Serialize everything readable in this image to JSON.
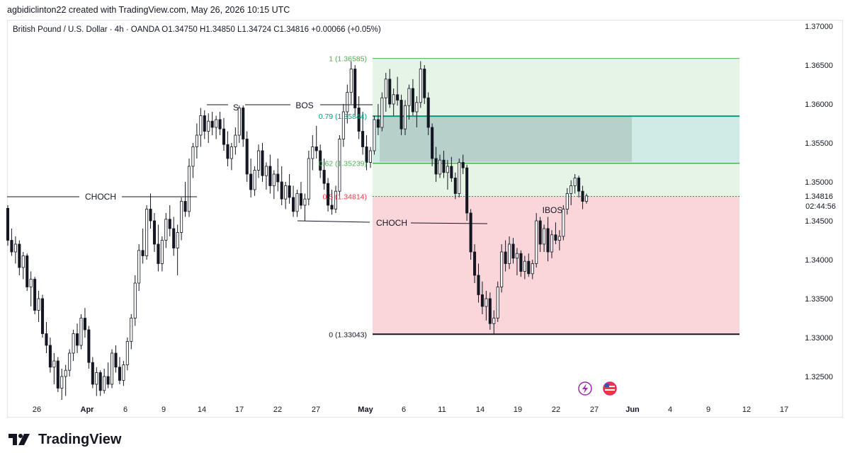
{
  "header": {
    "credit": "agbidiclinton22 created with TradingView.com, May 26, 2026 10:15 UTC"
  },
  "symbol_info": "British Pound / U.S. Dollar · 4h · OANDA  O1.34750  H1.34850  L1.34724  C1.34816  +0.00066 (+0.05%)",
  "brand": {
    "name": "TradingView"
  },
  "colors": {
    "up": "#131722",
    "down": "#131722",
    "fib_green": "#4caf50",
    "fib_teal": "#089981",
    "fib_red": "#f23645",
    "zone_green": "#e6f4e5",
    "zone_teal": "#cfebe6",
    "zone_red": "#fad6da",
    "ob_box": "#9ab0a8"
  },
  "chart_data": {
    "type": "candlestick",
    "ylim": [
      1.3215,
      1.371
    ],
    "y_ticks": [
      "1.37000",
      "1.36500",
      "1.36000",
      "1.35500",
      "1.35000",
      "1.34500",
      "1.34000",
      "1.33500",
      "1.33000",
      "1.32500"
    ],
    "current_price": "1.34816",
    "countdown": "02:44:56",
    "x_ticks": [
      "26",
      "Apr",
      "6",
      "9",
      "14",
      "17",
      "22",
      "27",
      "May",
      "6",
      "11",
      "14",
      "19",
      "22",
      "27",
      "Jun",
      "4",
      "9",
      "12",
      "17"
    ],
    "fib_levels": [
      {
        "label": "1 (1.36585)",
        "value": 1.36585
      },
      {
        "label": "0.79 (1.35844)",
        "value": 1.35844
      },
      {
        "label": "0.62 (1.35239)",
        "value": 1.35239
      },
      {
        "label": "0.5 (1.34814)",
        "value": 1.34814
      },
      {
        "label": "0 (1.33043)",
        "value": 1.33043
      }
    ],
    "annotations": [
      {
        "text": "CHOCH",
        "price": 1.34814
      },
      {
        "text": "S",
        "price": 1.36
      },
      {
        "text": "BOS",
        "price": 1.36
      },
      {
        "text": "CHOCH",
        "price": 1.345
      },
      {
        "text": "IBOS",
        "price": 1.346
      }
    ],
    "candles": [
      [
        1.3466,
        1.347,
        1.3418,
        1.3425
      ],
      [
        1.3425,
        1.344,
        1.3405,
        1.341
      ],
      [
        1.341,
        1.343,
        1.3395,
        1.342
      ],
      [
        1.342,
        1.3425,
        1.338,
        1.339
      ],
      [
        1.339,
        1.341,
        1.3375,
        1.3405
      ],
      [
        1.3405,
        1.3408,
        1.336,
        1.3365
      ],
      [
        1.3365,
        1.3385,
        1.334,
        1.3375
      ],
      [
        1.3375,
        1.3378,
        1.333,
        1.3335
      ],
      [
        1.3335,
        1.336,
        1.332,
        1.335
      ],
      [
        1.335,
        1.3355,
        1.33,
        1.3305
      ],
      [
        1.3305,
        1.332,
        1.328,
        1.329
      ],
      [
        1.329,
        1.33,
        1.3255,
        1.3262
      ],
      [
        1.3262,
        1.328,
        1.324,
        1.327
      ],
      [
        1.327,
        1.3275,
        1.323,
        1.3235
      ],
      [
        1.3235,
        1.326,
        1.322,
        1.325
      ],
      [
        1.325,
        1.3265,
        1.3225,
        1.3258
      ],
      [
        1.3258,
        1.3285,
        1.325,
        1.328
      ],
      [
        1.328,
        1.331,
        1.327,
        1.3305
      ],
      [
        1.3305,
        1.3318,
        1.328,
        1.329
      ],
      [
        1.329,
        1.333,
        1.3285,
        1.3325
      ],
      [
        1.3325,
        1.3338,
        1.33,
        1.331
      ],
      [
        1.331,
        1.3315,
        1.326,
        1.3268
      ],
      [
        1.3268,
        1.3275,
        1.3235,
        1.324
      ],
      [
        1.324,
        1.3262,
        1.3225,
        1.3255
      ],
      [
        1.3255,
        1.3258,
        1.3225,
        1.3232
      ],
      [
        1.3232,
        1.326,
        1.3228,
        1.325
      ],
      [
        1.325,
        1.3268,
        1.3235,
        1.324
      ],
      [
        1.324,
        1.3285,
        1.3235,
        1.328
      ],
      [
        1.328,
        1.329,
        1.3255,
        1.3262
      ],
      [
        1.3262,
        1.3275,
        1.324,
        1.3245
      ],
      [
        1.3245,
        1.327,
        1.3238,
        1.3265
      ],
      [
        1.3265,
        1.33,
        1.3258,
        1.3295
      ],
      [
        1.3295,
        1.333,
        1.3285,
        1.3325
      ],
      [
        1.3325,
        1.338,
        1.3315,
        1.337
      ],
      [
        1.337,
        1.342,
        1.336,
        1.3412
      ],
      [
        1.3412,
        1.344,
        1.3395,
        1.3405
      ],
      [
        1.3405,
        1.347,
        1.34,
        1.3465
      ],
      [
        1.3465,
        1.3485,
        1.344,
        1.345
      ],
      [
        1.345,
        1.346,
        1.341,
        1.342
      ],
      [
        1.342,
        1.3445,
        1.3385,
        1.3395
      ],
      [
        1.3395,
        1.343,
        1.3385,
        1.3425
      ],
      [
        1.3425,
        1.346,
        1.3415,
        1.3452
      ],
      [
        1.3452,
        1.347,
        1.343,
        1.344
      ],
      [
        1.344,
        1.3455,
        1.3405,
        1.3415
      ],
      [
        1.3415,
        1.3445,
        1.338,
        1.3435
      ],
      [
        1.3435,
        1.348,
        1.3425,
        1.3475
      ],
      [
        1.3475,
        1.35,
        1.3455,
        1.3462
      ],
      [
        1.3462,
        1.353,
        1.3455,
        1.352
      ],
      [
        1.352,
        1.355,
        1.3505,
        1.3545
      ],
      [
        1.3545,
        1.3575,
        1.353,
        1.356
      ],
      [
        1.356,
        1.3595,
        1.3545,
        1.3585
      ],
      [
        1.3585,
        1.3592,
        1.3555,
        1.3565
      ],
      [
        1.3565,
        1.3588,
        1.355,
        1.3578
      ],
      [
        1.3578,
        1.359,
        1.356,
        1.357
      ],
      [
        1.357,
        1.3585,
        1.3555,
        1.358
      ],
      [
        1.358,
        1.359,
        1.356,
        1.3568
      ],
      [
        1.3568,
        1.3582,
        1.354,
        1.3548
      ],
      [
        1.3548,
        1.3565,
        1.352,
        1.353
      ],
      [
        1.353,
        1.355,
        1.3515,
        1.3545
      ],
      [
        1.3545,
        1.357,
        1.3535,
        1.356
      ],
      [
        1.356,
        1.3598,
        1.355,
        1.3595
      ],
      [
        1.3595,
        1.3598,
        1.3545,
        1.3555
      ],
      [
        1.3555,
        1.3565,
        1.35,
        1.351
      ],
      [
        1.351,
        1.353,
        1.348,
        1.349
      ],
      [
        1.349,
        1.352,
        1.3482,
        1.3515
      ],
      [
        1.3515,
        1.3548,
        1.3505,
        1.354
      ],
      [
        1.354,
        1.355,
        1.35,
        1.3508
      ],
      [
        1.3508,
        1.3525,
        1.349,
        1.352
      ],
      [
        1.352,
        1.3535,
        1.3485,
        1.3495
      ],
      [
        1.3495,
        1.3515,
        1.3478,
        1.351
      ],
      [
        1.351,
        1.353,
        1.3488,
        1.35
      ],
      [
        1.35,
        1.352,
        1.347,
        1.3478
      ],
      [
        1.3478,
        1.35,
        1.3465,
        1.3495
      ],
      [
        1.3495,
        1.351,
        1.3472,
        1.348
      ],
      [
        1.348,
        1.3495,
        1.3455,
        1.3462
      ],
      [
        1.3462,
        1.349,
        1.3455,
        1.3485
      ],
      [
        1.3485,
        1.35,
        1.3465,
        1.347
      ],
      [
        1.347,
        1.3485,
        1.345,
        1.3478
      ],
      [
        1.3478,
        1.354,
        1.347,
        1.353
      ],
      [
        1.353,
        1.356,
        1.3515,
        1.3545
      ],
      [
        1.3545,
        1.3572,
        1.353,
        1.354
      ],
      [
        1.354,
        1.3548,
        1.3505,
        1.3515
      ],
      [
        1.3515,
        1.353,
        1.349,
        1.3498
      ],
      [
        1.3498,
        1.3505,
        1.3462,
        1.347
      ],
      [
        1.347,
        1.349,
        1.3458,
        1.3465
      ],
      [
        1.3465,
        1.3495,
        1.346,
        1.3488
      ],
      [
        1.3488,
        1.356,
        1.348,
        1.3555
      ],
      [
        1.3555,
        1.36,
        1.3545,
        1.359
      ],
      [
        1.359,
        1.3625,
        1.3575,
        1.3615
      ],
      [
        1.3615,
        1.3655,
        1.36,
        1.3645
      ],
      [
        1.3645,
        1.365,
        1.3585,
        1.3595
      ],
      [
        1.3595,
        1.361,
        1.3555,
        1.3565
      ],
      [
        1.3565,
        1.359,
        1.3535,
        1.3545
      ],
      [
        1.3545,
        1.356,
        1.3515,
        1.3525
      ],
      [
        1.3525,
        1.3545,
        1.3518,
        1.354
      ],
      [
        1.354,
        1.3585,
        1.3535,
        1.358
      ],
      [
        1.358,
        1.36,
        1.356,
        1.357
      ],
      [
        1.357,
        1.3615,
        1.3565,
        1.3608
      ],
      [
        1.3608,
        1.364,
        1.359,
        1.3632
      ],
      [
        1.3632,
        1.3645,
        1.3595,
        1.36
      ],
      [
        1.36,
        1.362,
        1.3585,
        1.3612
      ],
      [
        1.3612,
        1.3635,
        1.3598,
        1.3605
      ],
      [
        1.3605,
        1.3612,
        1.356,
        1.3568
      ],
      [
        1.3568,
        1.3605,
        1.356,
        1.3598
      ],
      [
        1.3598,
        1.3625,
        1.358,
        1.362
      ],
      [
        1.362,
        1.3632,
        1.3585,
        1.359
      ],
      [
        1.359,
        1.361,
        1.357,
        1.3602
      ],
      [
        1.3602,
        1.3655,
        1.3595,
        1.3645
      ],
      [
        1.3645,
        1.365,
        1.36,
        1.3608
      ],
      [
        1.3608,
        1.3615,
        1.356,
        1.357
      ],
      [
        1.357,
        1.3575,
        1.352,
        1.353
      ],
      [
        1.353,
        1.3545,
        1.35,
        1.351
      ],
      [
        1.351,
        1.3535,
        1.3505,
        1.3528
      ],
      [
        1.3528,
        1.354,
        1.3505,
        1.3512
      ],
      [
        1.3512,
        1.3528,
        1.349,
        1.352
      ],
      [
        1.352,
        1.3532,
        1.35,
        1.3505
      ],
      [
        1.3505,
        1.3512,
        1.3478,
        1.3485
      ],
      [
        1.3485,
        1.353,
        1.348,
        1.3525
      ],
      [
        1.3525,
        1.3535,
        1.351,
        1.3518
      ],
      [
        1.3518,
        1.3522,
        1.345,
        1.346
      ],
      [
        1.346,
        1.3465,
        1.34,
        1.341
      ],
      [
        1.341,
        1.342,
        1.337,
        1.338
      ],
      [
        1.338,
        1.3395,
        1.3345,
        1.3355
      ],
      [
        1.3355,
        1.3372,
        1.333,
        1.334
      ],
      [
        1.334,
        1.336,
        1.3322,
        1.335
      ],
      [
        1.335,
        1.3358,
        1.331,
        1.3318
      ],
      [
        1.3318,
        1.3335,
        1.3304,
        1.3325
      ],
      [
        1.3325,
        1.3372,
        1.332,
        1.3365
      ],
      [
        1.3365,
        1.342,
        1.3358,
        1.341
      ],
      [
        1.341,
        1.3425,
        1.3385,
        1.3395
      ],
      [
        1.3395,
        1.343,
        1.3388,
        1.342
      ],
      [
        1.342,
        1.3428,
        1.3395,
        1.3402
      ],
      [
        1.3402,
        1.3415,
        1.338,
        1.3408
      ],
      [
        1.3408,
        1.3412,
        1.3378,
        1.3385
      ],
      [
        1.3385,
        1.3405,
        1.3375,
        1.3398
      ],
      [
        1.3398,
        1.3408,
        1.3378,
        1.3382
      ],
      [
        1.3382,
        1.34,
        1.3375,
        1.3395
      ],
      [
        1.3395,
        1.346,
        1.339,
        1.345
      ],
      [
        1.345,
        1.3455,
        1.341,
        1.342
      ],
      [
        1.342,
        1.3445,
        1.341,
        1.344
      ],
      [
        1.344,
        1.3455,
        1.3398,
        1.341
      ],
      [
        1.341,
        1.3438,
        1.3402,
        1.3432
      ],
      [
        1.3432,
        1.3448,
        1.342,
        1.3425
      ],
      [
        1.3425,
        1.3438,
        1.3412,
        1.343
      ],
      [
        1.343,
        1.347,
        1.3425,
        1.3465
      ],
      [
        1.3465,
        1.3492,
        1.3458,
        1.3485
      ],
      [
        1.3485,
        1.3502,
        1.347,
        1.3495
      ],
      [
        1.3495,
        1.351,
        1.3485,
        1.3505
      ],
      [
        1.3505,
        1.3508,
        1.348,
        1.3488
      ],
      [
        1.3488,
        1.3495,
        1.3465,
        1.3475
      ],
      [
        1.3475,
        1.3485,
        1.3472,
        1.3482
      ]
    ]
  }
}
